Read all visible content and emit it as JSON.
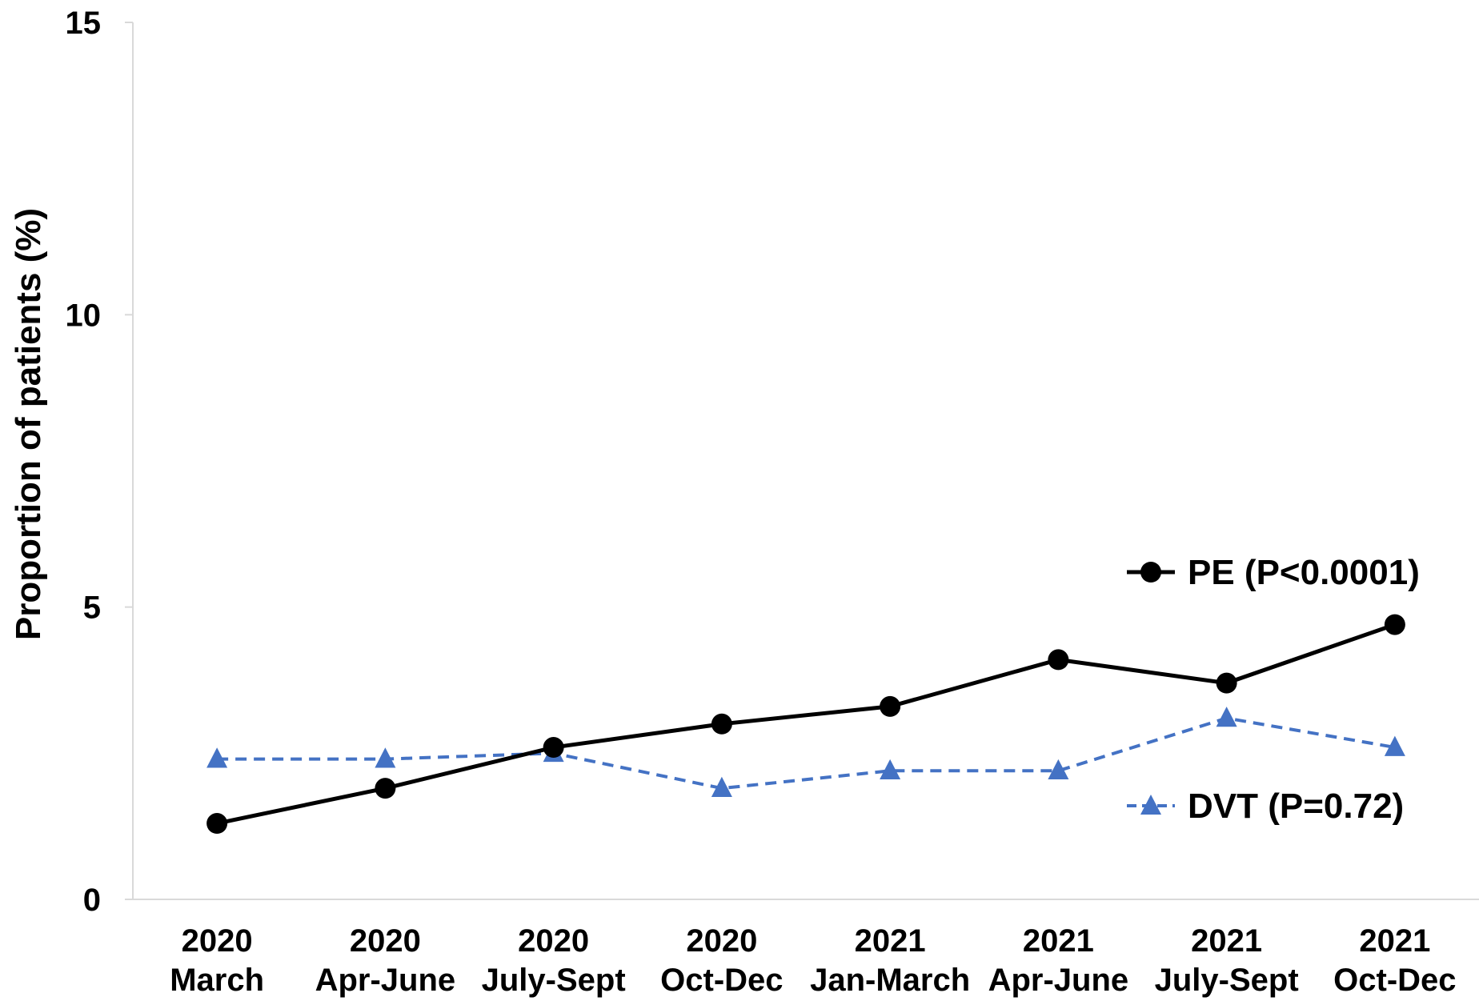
{
  "chart_data": {
    "type": "line",
    "categories": [
      [
        "2020",
        "March"
      ],
      [
        "2020",
        "Apr-June"
      ],
      [
        "2020",
        "July-Sept"
      ],
      [
        "2020",
        "Oct-Dec"
      ],
      [
        "2021",
        "Jan-March"
      ],
      [
        "2021",
        "Apr-June"
      ],
      [
        "2021",
        "July-Sept"
      ],
      [
        "2021",
        "Oct-Dec"
      ]
    ],
    "ylabel": "Proportion of patients (%)",
    "ylim": [
      0,
      15
    ],
    "yticks": [
      "0",
      "5",
      "10",
      "15"
    ],
    "grid": false,
    "series": [
      {
        "name": "PE (P<0.0001)",
        "color": "#000000",
        "marker": "circle",
        "line_style": "solid",
        "values": [
          1.3,
          1.9,
          2.6,
          3.0,
          3.3,
          4.1,
          3.7,
          4.7
        ]
      },
      {
        "name": "DVT (P=0.72)",
        "color": "#4472C4",
        "marker": "triangle",
        "line_style": "dashed",
        "values": [
          2.4,
          2.4,
          2.5,
          1.9,
          2.2,
          2.2,
          3.1,
          2.6
        ]
      }
    ],
    "legend_position": "right"
  }
}
